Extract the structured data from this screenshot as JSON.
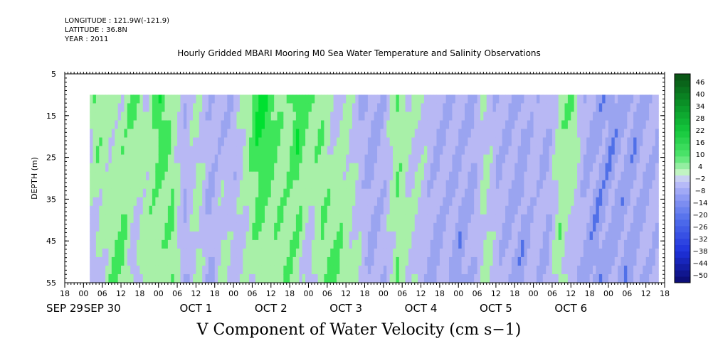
{
  "header": {
    "longitude": "LONGITUDE : 121.9W(-121.9)",
    "latitude": "LATITUDE : 36.8N",
    "year": "YEAR : 2011"
  },
  "chart_data": {
    "type": "heatmap",
    "title": "Hourly Gridded MBARI Mooring M0 Sea Water Temperature and Salinity Observations",
    "bottom_title": "V Component of Water Velocity (cm s−1)",
    "ylabel": "DEPTH (m)",
    "y_axis": {
      "range": [
        5,
        55
      ],
      "inverted": true,
      "ticks": [
        "5",
        "15",
        "25",
        "35",
        "45",
        "55"
      ],
      "data_top_depth": 10
    },
    "x_axis": {
      "range_hours": [
        -6,
        186
      ],
      "data_start_hour": 2,
      "hour_ticks": [
        "18",
        "00",
        "06",
        "12",
        "18",
        "00",
        "06",
        "12",
        "18",
        "00",
        "06",
        "12",
        "18",
        "00",
        "06",
        "12",
        "18",
        "00",
        "06",
        "12",
        "18",
        "00",
        "06",
        "12",
        "18",
        "00",
        "06",
        "12",
        "18",
        "00",
        "06",
        "12",
        "18"
      ],
      "hour_tick_start": -6,
      "hour_tick_step": 6,
      "date_labels": [
        {
          "text": "SEP 29",
          "hour": -6
        },
        {
          "text": "SEP 30",
          "hour": 6
        },
        {
          "text": "OCT  1",
          "hour": 36
        },
        {
          "text": "OCT  2",
          "hour": 60
        },
        {
          "text": "OCT  3",
          "hour": 84
        },
        {
          "text": "OCT  4",
          "hour": 108
        },
        {
          "text": "OCT  5",
          "hour": 132
        },
        {
          "text": "OCT  6",
          "hour": 156
        }
      ]
    },
    "colorbar": {
      "labels": [
        "46",
        "40",
        "34",
        "28",
        "22",
        "16",
        "10",
        "4",
        "−2",
        "−8",
        "−14",
        "−20",
        "−26",
        "−32",
        "−38",
        "−44",
        "−50"
      ],
      "levels": [
        -50,
        -47,
        -44,
        -41,
        -38,
        -35,
        -32,
        -29,
        -26,
        -23,
        -20,
        -17,
        -14,
        -11,
        -8,
        -5,
        -2,
        1,
        4,
        7,
        10,
        13,
        16,
        19,
        22,
        25,
        28,
        31,
        34,
        37,
        40,
        43,
        46,
        49
      ]
    },
    "colors": {
      "strong_positive": "#00e030",
      "weak_positive": "#a8f0a8",
      "weak_negative": "#b8b8f4",
      "strong_negative": "#5070e8"
    },
    "series_profile": {
      "description_units": "V velocity (cm s-1) by hour; negative = southward",
      "hours": [
        2,
        4,
        8,
        12,
        16,
        20,
        24,
        28,
        32,
        36,
        40,
        44,
        48,
        52,
        56,
        60,
        64,
        68,
        72,
        76,
        80,
        84,
        88,
        92,
        96,
        100,
        104,
        108,
        112,
        116,
        120,
        124,
        128,
        132,
        136,
        140,
        144,
        148,
        152,
        156,
        160,
        164,
        168,
        172,
        176,
        180,
        184
      ],
      "v_surface": [
        4,
        8,
        2,
        3,
        9,
        1,
        12,
        4,
        -3,
        2,
        -4,
        -5,
        -3,
        6,
        14,
        10,
        3,
        12,
        8,
        5,
        -2,
        3,
        -4,
        -6,
        -3,
        6,
        1,
        2,
        -4,
        -5,
        -3,
        -6,
        1,
        -5,
        -4,
        -6,
        -2,
        -5,
        4,
        8,
        -4,
        -6,
        -8,
        -6,
        -7,
        -5,
        -4
      ],
      "v_bottom": [
        -3,
        -2,
        5,
        9,
        -4,
        6,
        2,
        8,
        -5,
        3,
        -6,
        4,
        -2,
        1,
        5,
        3,
        7,
        4,
        -3,
        6,
        10,
        4,
        1,
        -6,
        -3,
        5,
        2,
        -4,
        -6,
        -3,
        -8,
        -5,
        3,
        -2,
        -6,
        -7,
        -3,
        -6,
        5,
        -4,
        -6,
        -8,
        -5,
        -7,
        -6,
        -4,
        -3
      ]
    }
  }
}
